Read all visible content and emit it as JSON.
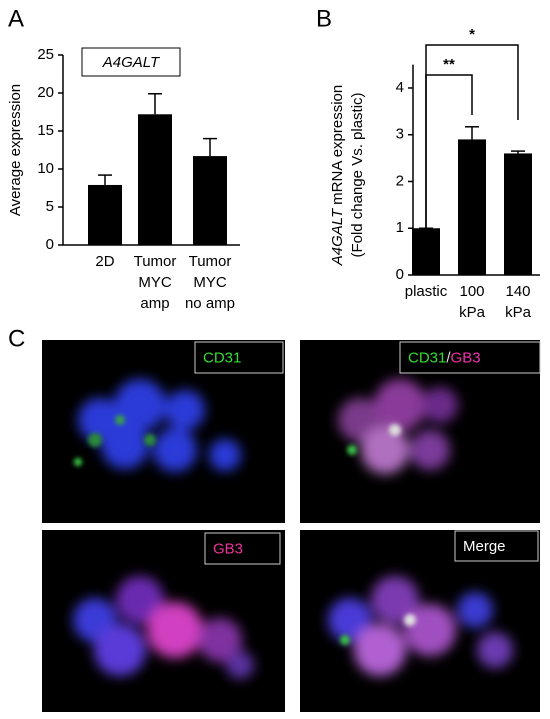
{
  "panel_labels": [
    "A",
    "B",
    "C"
  ],
  "chart_data": [
    {
      "type": "bar",
      "annotation": "A4GALT",
      "y_label": "Average expression",
      "categories": [
        [
          "2D"
        ],
        [
          "Tumor",
          "MYC",
          "amp"
        ],
        [
          "Tumor",
          "MYC",
          "no amp"
        ]
      ],
      "values": [
        7.9,
        17.2,
        11.7
      ],
      "errors": [
        1.3,
        2.7,
        2.3
      ],
      "color": "#000000",
      "ylim": [
        0,
        25
      ],
      "yticks": [
        0,
        5,
        10,
        15,
        20,
        25
      ]
    },
    {
      "type": "bar",
      "y_label_gene": "A4GALT",
      "y_label": "mRNA expression",
      "y_label_2": "(Fold change Vs. plastic)",
      "categories": [
        [
          "plastic"
        ],
        [
          "100",
          "kPa"
        ],
        [
          "140",
          "kPa"
        ]
      ],
      "values": [
        1.0,
        2.9,
        2.6
      ],
      "errors": [
        0,
        0.27,
        0.05
      ],
      "color": "#000000",
      "ylim": [
        0,
        4.5
      ],
      "yticks": [
        0,
        1,
        2,
        3,
        4
      ],
      "significance": [
        {
          "label": "**",
          "from": 0,
          "to": 1
        },
        {
          "label": "*",
          "from": 0,
          "to": 2
        }
      ]
    }
  ],
  "image_labels": [
    [
      {
        "text": "CD31",
        "color": "#33dd33"
      }
    ],
    [
      {
        "text": "CD31",
        "color": "#33dd33"
      },
      {
        "text": "/",
        "color": "#dddddd"
      },
      {
        "text": "GB3",
        "color": "#ee33aa"
      }
    ],
    [
      {
        "text": "GB3",
        "color": "#ee3399"
      }
    ],
    [
      {
        "text": "Merge",
        "color": "#ffffff"
      }
    ]
  ]
}
